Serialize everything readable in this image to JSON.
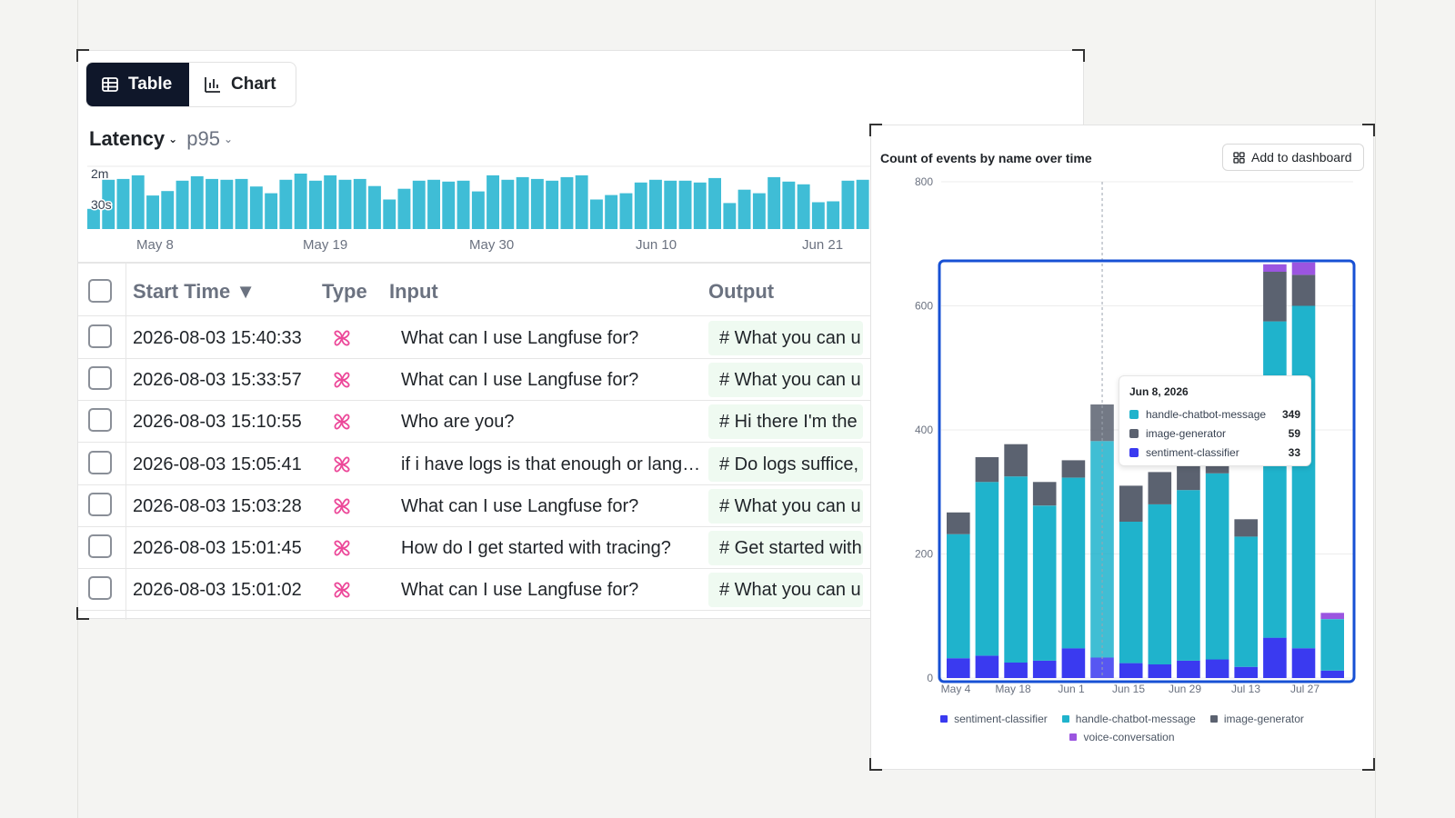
{
  "view_toggle": {
    "table_label": "Table",
    "chart_label": "Chart"
  },
  "metric": {
    "name": "Latency",
    "aggregation": "p95"
  },
  "sparkline": {
    "y_labels": [
      "2m",
      "30s"
    ],
    "x_labels": [
      "May 8",
      "May 19",
      "May 30",
      "Jun 10",
      "Jun 21"
    ],
    "color": "#3fbdd6",
    "values_sec": [
      45,
      110,
      112,
      120,
      75,
      85,
      108,
      118,
      112,
      110,
      112,
      95,
      80,
      110,
      124,
      108,
      120,
      110,
      112,
      96,
      66,
      90,
      108,
      110,
      106,
      108,
      84,
      120,
      110,
      116,
      112,
      108,
      116,
      120,
      66,
      76,
      80,
      104,
      110,
      108,
      108,
      104,
      114,
      58,
      88,
      80,
      116,
      106,
      100,
      60,
      62,
      108,
      110
    ]
  },
  "table": {
    "columns": [
      "Start Time ▼",
      "Type",
      "Input",
      "Output"
    ],
    "rows": [
      {
        "time": "2026-08-03 15:40:33",
        "input": "What can I use Langfuse for?",
        "output": "# What you can u"
      },
      {
        "time": "2026-08-03 15:33:57",
        "input": "What can I use Langfuse for?",
        "output": "# What you can u"
      },
      {
        "time": "2026-08-03 15:10:55",
        "input": "Who are you?",
        "output": "# Hi there I'm the"
      },
      {
        "time": "2026-08-03 15:05:41",
        "input": "if i have logs is that enough or lang…",
        "output": "# Do logs suffice,"
      },
      {
        "time": "2026-08-03 15:03:28",
        "input": "What can I use Langfuse for?",
        "output": "# What you can u"
      },
      {
        "time": "2026-08-03 15:01:45",
        "input": "How do I get started with tracing?",
        "output": "# Get started with"
      },
      {
        "time": "2026-08-03 15:01:02",
        "input": "What can I use Langfuse for?",
        "output": "# What you can u"
      }
    ],
    "type_icon": "trace-icon",
    "type_icon_color": "#ec4899"
  },
  "chart_card": {
    "title": "Count of events by name over time",
    "add_button_label": "Add to dashboard",
    "tooltip": {
      "date": "Jun 8, 2026",
      "items": [
        {
          "name": "handle-chatbot-message",
          "value": "349",
          "color": "#1fb3cc"
        },
        {
          "name": "image-generator",
          "value": "59",
          "color": "#5b6270"
        },
        {
          "name": "sentiment-classifier",
          "value": "33",
          "color": "#3a3af0"
        }
      ]
    },
    "legend": [
      {
        "name": "sentiment-classifier",
        "color": "#3a3af0"
      },
      {
        "name": "handle-chatbot-message",
        "color": "#1fb3cc"
      },
      {
        "name": "image-generator",
        "color": "#5b6270"
      },
      {
        "name": "voice-conversation",
        "color": "#9b55e0"
      }
    ]
  },
  "chart_data": {
    "type": "bar",
    "stacked": true,
    "x_tick_labels": [
      "May 4",
      "May 18",
      "Jun 1",
      "Jun 15",
      "Jun 29",
      "Jul 13",
      "Jul 27"
    ],
    "ylim": [
      0,
      800
    ],
    "y_ticks": [
      0,
      200,
      400,
      600,
      800
    ],
    "grid": true,
    "legend_position": "bottom",
    "highlight_index": 5,
    "series": [
      {
        "name": "sentiment-classifier",
        "color": "#3a3af0",
        "values": [
          32,
          36,
          25,
          28,
          48,
          33,
          24,
          22,
          28,
          30,
          18,
          65,
          48,
          12
        ]
      },
      {
        "name": "handle-chatbot-message",
        "color": "#1fb3cc",
        "values": [
          200,
          280,
          300,
          250,
          275,
          349,
          228,
          258,
          275,
          300,
          210,
          510,
          552,
          83
        ]
      },
      {
        "name": "image-generator",
        "color": "#5b6270",
        "values": [
          35,
          40,
          52,
          38,
          28,
          59,
          58,
          52,
          52,
          25,
          28,
          80,
          50,
          0
        ]
      },
      {
        "name": "voice-conversation",
        "color": "#9b55e0",
        "values": [
          0,
          0,
          0,
          0,
          0,
          0,
          0,
          0,
          0,
          0,
          0,
          12,
          20,
          10
        ]
      }
    ]
  }
}
